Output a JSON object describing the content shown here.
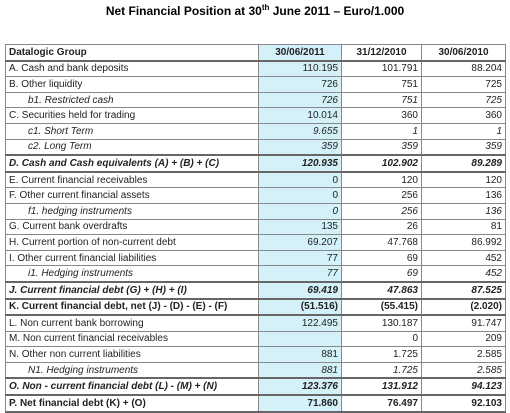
{
  "title": {
    "before": "Net Financial Position at 30",
    "superscript": "th",
    "after": " June 2011 – Euro/1.000"
  },
  "table": {
    "header": [
      "Datalogic Group",
      "30/06/2011",
      "31/12/2010",
      "30/06/2010"
    ],
    "rows": [
      [
        "A. Cash and bank deposits",
        "110.195",
        "101.791",
        "88.204"
      ],
      [
        "B. Other liquidity",
        "726",
        "751",
        "725"
      ],
      [
        "b1. Restricted cash",
        "726",
        "751",
        "725"
      ],
      [
        "C. Securities held for trading",
        "10.014",
        "360",
        "360"
      ],
      [
        "c1. Short Term",
        "9.655",
        "1",
        "1"
      ],
      [
        "c2. Long Term",
        "359",
        "359",
        "359"
      ],
      [
        "D. Cash and Cash equivalents (A) + (B) + (C)",
        "120.935",
        "102.902",
        "89.289"
      ],
      [
        "E. Current financial receivables",
        "0",
        "120",
        "120"
      ],
      [
        "F. Other current financial assets",
        "0",
        "256",
        "136"
      ],
      [
        "f1. hedging instruments",
        "0",
        "256",
        "136"
      ],
      [
        "G. Current bank overdrafts",
        "135",
        "26",
        "81"
      ],
      [
        "H. Current portion of non-current debt",
        "69.207",
        "47.768",
        "86.992"
      ],
      [
        "I. Other current financial liabilities",
        "77",
        "69",
        "452"
      ],
      [
        "i1. Hedging instruments",
        "77",
        "69",
        "452"
      ],
      [
        "J. Current financial debt (G) + (H) + (I)",
        "69.419",
        "47.863",
        "87.525"
      ],
      [
        "K. Current financial debt, net (J) - (D) - (E) - (F)",
        "(51.516)",
        "(55.415)",
        "(2.020)"
      ],
      [
        "L. Non current bank borrowing",
        "122.495",
        "130.187",
        "91.747"
      ],
      [
        "M. Non current financial receivables",
        null,
        "0",
        "209"
      ],
      [
        "N. Other non current liabilities",
        "881",
        "1.725",
        "2.585"
      ],
      [
        "N1. Hedging instruments",
        "881",
        "1.725",
        "2.585"
      ],
      [
        "O. Non - current financial debt (L) - (M) + (N)",
        "123.376",
        "131.912",
        "94.123"
      ],
      [
        "P. Net financial debt (K) + (O)",
        "71.860",
        "76.497",
        "92.103"
      ]
    ]
  }
}
